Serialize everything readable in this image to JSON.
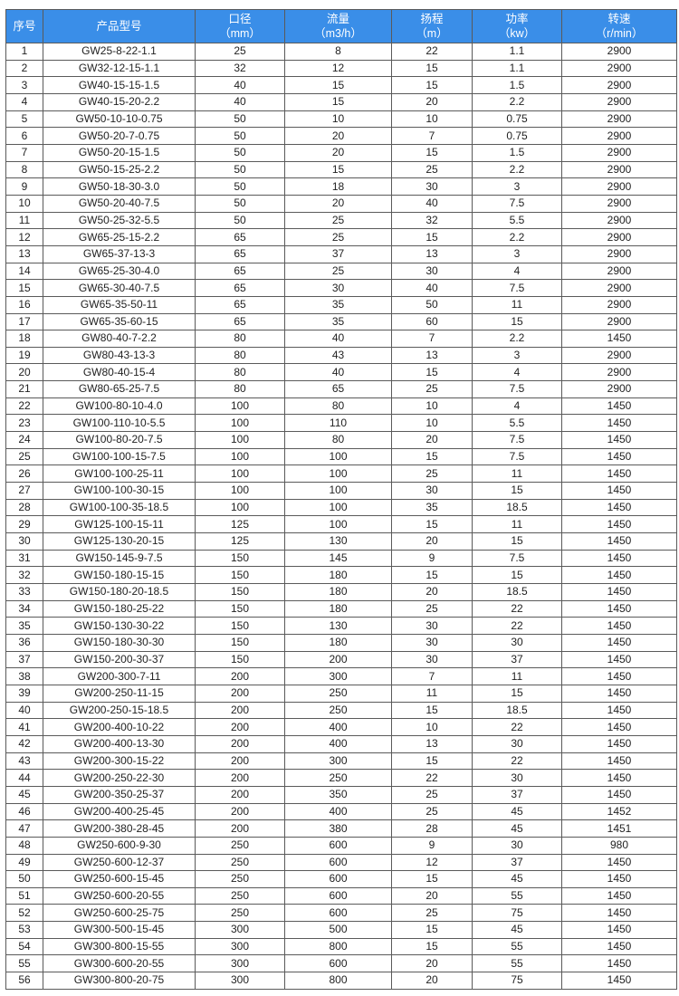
{
  "table": {
    "headers": [
      {
        "label": "序号",
        "unit": ""
      },
      {
        "label": "产品型号",
        "unit": ""
      },
      {
        "label": "口径",
        "unit": "（mm）"
      },
      {
        "label": "流量",
        "unit": "（m3/h）"
      },
      {
        "label": "扬程",
        "unit": "（m）"
      },
      {
        "label": "功率",
        "unit": "（kw）"
      },
      {
        "label": "转速",
        "unit": "（r/min）"
      }
    ],
    "header_color": "#3a8ee8",
    "rows": [
      [
        "1",
        "GW25-8-22-1.1",
        "25",
        "8",
        "22",
        "1.1",
        "2900"
      ],
      [
        "2",
        "GW32-12-15-1.1",
        "32",
        "12",
        "15",
        "1.1",
        "2900"
      ],
      [
        "3",
        "GW40-15-15-1.5",
        "40",
        "15",
        "15",
        "1.5",
        "2900"
      ],
      [
        "4",
        "GW40-15-20-2.2",
        "40",
        "15",
        "20",
        "2.2",
        "2900"
      ],
      [
        "5",
        "GW50-10-10-0.75",
        "50",
        "10",
        "10",
        "0.75",
        "2900"
      ],
      [
        "6",
        "GW50-20-7-0.75",
        "50",
        "20",
        "7",
        "0.75",
        "2900"
      ],
      [
        "7",
        "GW50-20-15-1.5",
        "50",
        "20",
        "15",
        "1.5",
        "2900"
      ],
      [
        "8",
        "GW50-15-25-2.2",
        "50",
        "15",
        "25",
        "2.2",
        "2900"
      ],
      [
        "9",
        "GW50-18-30-3.0",
        "50",
        "18",
        "30",
        "3",
        "2900"
      ],
      [
        "10",
        "GW50-20-40-7.5",
        "50",
        "20",
        "40",
        "7.5",
        "2900"
      ],
      [
        "11",
        "GW50-25-32-5.5",
        "50",
        "25",
        "32",
        "5.5",
        "2900"
      ],
      [
        "12",
        "GW65-25-15-2.2",
        "65",
        "25",
        "15",
        "2.2",
        "2900"
      ],
      [
        "13",
        "GW65-37-13-3",
        "65",
        "37",
        "13",
        "3",
        "2900"
      ],
      [
        "14",
        "GW65-25-30-4.0",
        "65",
        "25",
        "30",
        "4",
        "2900"
      ],
      [
        "15",
        "GW65-30-40-7.5",
        "65",
        "30",
        "40",
        "7.5",
        "2900"
      ],
      [
        "16",
        "GW65-35-50-11",
        "65",
        "35",
        "50",
        "11",
        "2900"
      ],
      [
        "17",
        "GW65-35-60-15",
        "65",
        "35",
        "60",
        "15",
        "2900"
      ],
      [
        "18",
        "GW80-40-7-2.2",
        "80",
        "40",
        "7",
        "2.2",
        "1450"
      ],
      [
        "19",
        "GW80-43-13-3",
        "80",
        "43",
        "13",
        "3",
        "2900"
      ],
      [
        "20",
        "GW80-40-15-4",
        "80",
        "40",
        "15",
        "4",
        "2900"
      ],
      [
        "21",
        "GW80-65-25-7.5",
        "80",
        "65",
        "25",
        "7.5",
        "2900"
      ],
      [
        "22",
        "GW100-80-10-4.0",
        "100",
        "80",
        "10",
        "4",
        "1450"
      ],
      [
        "23",
        "GW100-110-10-5.5",
        "100",
        "110",
        "10",
        "5.5",
        "1450"
      ],
      [
        "24",
        "GW100-80-20-7.5",
        "100",
        "80",
        "20",
        "7.5",
        "1450"
      ],
      [
        "25",
        "GW100-100-15-7.5",
        "100",
        "100",
        "15",
        "7.5",
        "1450"
      ],
      [
        "26",
        "GW100-100-25-11",
        "100",
        "100",
        "25",
        "11",
        "1450"
      ],
      [
        "27",
        "GW100-100-30-15",
        "100",
        "100",
        "30",
        "15",
        "1450"
      ],
      [
        "28",
        "GW100-100-35-18.5",
        "100",
        "100",
        "35",
        "18.5",
        "1450"
      ],
      [
        "29",
        "GW125-100-15-11",
        "125",
        "100",
        "15",
        "11",
        "1450"
      ],
      [
        "30",
        "GW125-130-20-15",
        "125",
        "130",
        "20",
        "15",
        "1450"
      ],
      [
        "31",
        "GW150-145-9-7.5",
        "150",
        "145",
        "9",
        "7.5",
        "1450"
      ],
      [
        "32",
        "GW150-180-15-15",
        "150",
        "180",
        "15",
        "15",
        "1450"
      ],
      [
        "33",
        "GW150-180-20-18.5",
        "150",
        "180",
        "20",
        "18.5",
        "1450"
      ],
      [
        "34",
        "GW150-180-25-22",
        "150",
        "180",
        "25",
        "22",
        "1450"
      ],
      [
        "35",
        "GW150-130-30-22",
        "150",
        "130",
        "30",
        "22",
        "1450"
      ],
      [
        "36",
        "GW150-180-30-30",
        "150",
        "180",
        "30",
        "30",
        "1450"
      ],
      [
        "37",
        "GW150-200-30-37",
        "150",
        "200",
        "30",
        "37",
        "1450"
      ],
      [
        "38",
        "GW200-300-7-11",
        "200",
        "300",
        "7",
        "11",
        "1450"
      ],
      [
        "39",
        "GW200-250-11-15",
        "200",
        "250",
        "11",
        "15",
        "1450"
      ],
      [
        "40",
        "GW200-250-15-18.5",
        "200",
        "250",
        "15",
        "18.5",
        "1450"
      ],
      [
        "41",
        "GW200-400-10-22",
        "200",
        "400",
        "10",
        "22",
        "1450"
      ],
      [
        "42",
        "GW200-400-13-30",
        "200",
        "400",
        "13",
        "30",
        "1450"
      ],
      [
        "43",
        "GW200-300-15-22",
        "200",
        "300",
        "15",
        "22",
        "1450"
      ],
      [
        "44",
        "GW200-250-22-30",
        "200",
        "250",
        "22",
        "30",
        "1450"
      ],
      [
        "45",
        "GW200-350-25-37",
        "200",
        "350",
        "25",
        "37",
        "1450"
      ],
      [
        "46",
        "GW200-400-25-45",
        "200",
        "400",
        "25",
        "45",
        "1452"
      ],
      [
        "47",
        "GW200-380-28-45",
        "200",
        "380",
        "28",
        "45",
        "1451"
      ],
      [
        "48",
        "GW250-600-9-30",
        "250",
        "600",
        "9",
        "30",
        "980"
      ],
      [
        "49",
        "GW250-600-12-37",
        "250",
        "600",
        "12",
        "37",
        "1450"
      ],
      [
        "50",
        "GW250-600-15-45",
        "250",
        "600",
        "15",
        "45",
        "1450"
      ],
      [
        "51",
        "GW250-600-20-55",
        "250",
        "600",
        "20",
        "55",
        "1450"
      ],
      [
        "52",
        "GW250-600-25-75",
        "250",
        "600",
        "25",
        "75",
        "1450"
      ],
      [
        "53",
        "GW300-500-15-45",
        "300",
        "500",
        "15",
        "45",
        "1450"
      ],
      [
        "54",
        "GW300-800-15-55",
        "300",
        "800",
        "15",
        "55",
        "1450"
      ],
      [
        "55",
        "GW300-600-20-55",
        "300",
        "600",
        "20",
        "55",
        "1450"
      ],
      [
        "56",
        "GW300-800-20-75",
        "300",
        "800",
        "20",
        "75",
        "1450"
      ]
    ]
  }
}
